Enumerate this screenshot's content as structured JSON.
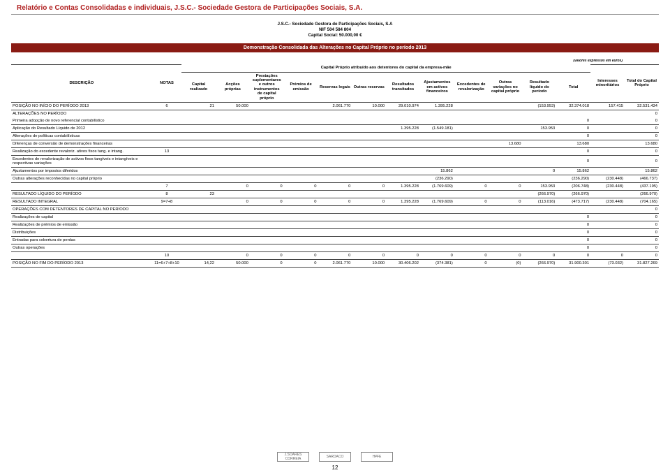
{
  "title": "Relatório e Contas Consolidadas e individuais, J.S.C.- Sociedade Gestora de Participações Sociais, S.A.",
  "company": {
    "line1": "J.S.C.- Sociedade Gestora de Participações Sociais, S.A",
    "line2": "NIF 504 584 804",
    "line3": "Capital Social: 50.000,00 €"
  },
  "banner": "Demonstração Consolidada das Alterações no Capital Próprio no período 2013",
  "subheader": "Capital Próprio atribuído aos detentores do capital da empresa-mãe",
  "euros_note": "(valores expressos em euros)",
  "columns": {
    "desc": "DESCRIÇÃO",
    "notas": "NOTAS",
    "c1": "Capital realizado",
    "c2": "Acções próprias",
    "c3": "Prestações suplementares e outros instrumentos de capital próprio",
    "c4": "Prémios de emissão",
    "c5": "Reservas legais",
    "c6": "Outras reservas",
    "c7": "Resultados transitados",
    "c8": "Ajustamentos em activos financeiros",
    "c9": "Excedentes de revalorização",
    "c10": "Outras variações no capital próprio",
    "c11": "Resultado líquido do período",
    "c12": "Total",
    "c13": "Interesses minoritários",
    "c14": "Total do Capital Próprio"
  },
  "rows": [
    {
      "label": "POSIÇÃO NO INÍCIO DO PERÍODO 2013",
      "notas": "6",
      "c1": "21",
      "c2": "50.000",
      "c3": "",
      "c4": "",
      "c5": "2.061.770",
      "c6": "10.000",
      "c7": "29.010.974",
      "c8": "1.395.228",
      "c9": "",
      "c10": "",
      "c11": "(153.953)",
      "c12": "32.374.018",
      "c13": "157.415",
      "c14": "32.531.434",
      "border": true
    },
    {
      "label": "ALTERAÇÕES NO PERÍODO",
      "c14": "0",
      "border": false
    },
    {
      "label": "Primeira adopção de novo referencial contabilístico",
      "c12": "0",
      "c14": "0",
      "border": true
    },
    {
      "label": "Aplicação do Resultado Líquido de 2012",
      "c7": "1.395.228",
      "c8": "(1.549.181)",
      "c11": "153.953",
      "c12": "0",
      "c14": "0",
      "border": true
    },
    {
      "label": "Alterações de políticas contabilísticas",
      "c12": "0",
      "c14": "0",
      "border": true
    },
    {
      "label": "Diferenças de conversão de demonstrações financeiras",
      "c10": "13.680",
      "c12": "13.680",
      "c14": "13.680",
      "border": true
    },
    {
      "label": "Realização do excedente revaloriz. ativos fixos tang. e intang.",
      "notas": "13",
      "c12": "0",
      "c14": "0",
      "border": true
    },
    {
      "label": "Excedentes de revalorização de activos fixos tangíveis e intangíveis e respectivas variações",
      "c12": "0",
      "c14": "0",
      "border": true
    },
    {
      "label": "Ajustamentos por impostos diferidos",
      "c8": "15.862",
      "c11": "0",
      "c12": "15.862",
      "c14": "15.862",
      "border": true
    },
    {
      "label": "Outras alterações reconhecidas no capital próprio",
      "c8": "(236.290)",
      "c12": "(236.290)",
      "c13": "(230.448)",
      "c14": "(466.737)",
      "border": true
    },
    {
      "label": "",
      "notas": "7",
      "c1": "",
      "c2": "0",
      "c3": "0",
      "c4": "0",
      "c5": "0",
      "c6": "0",
      "c7": "1.395.228",
      "c8": "(1.769.609)",
      "c9": "0",
      "c10": "0",
      "c11": "13.680",
      "c11b": "153.953",
      "c12": "(206.748)",
      "c13": "(230.448)",
      "c14": "(437.195)",
      "border": true,
      "summary": true
    },
    {
      "label": "RESULTADO LÍQUIDO DO PERÍODO",
      "notas": "8",
      "c1": "23",
      "c11": "(266.970)",
      "c12": "(266.970)",
      "c14": "(266.970)",
      "border": true
    },
    {
      "label": "RESULTADO INTEGRAL",
      "notas": "9=7+8",
      "c2": "0",
      "c3": "0",
      "c4": "0",
      "c5": "0",
      "c6": "0",
      "c7": "1.395.228",
      "c8": "(1.769.609)",
      "c9": "0",
      "c10": "0",
      "c10b": "13.680",
      "c11": "(113.016)",
      "c12": "(473.717)",
      "c13": "(230.448)",
      "c14": "(704.165)",
      "border": true
    },
    {
      "label": "OPERAÇÕES COM DETENTORES DE CAPITAL NO PERÍODO",
      "c14": "0",
      "border": true
    },
    {
      "label": "Realizações de capital",
      "c12": "0",
      "c14": "0",
      "border": true
    },
    {
      "label": "Realizações de prémios de emissão",
      "c12": "0",
      "c14": "0",
      "border": true
    },
    {
      "label": "Distribuições",
      "c12": "0",
      "c14": "0",
      "border": true
    },
    {
      "label": "Entradas para cobertura de perdas",
      "c12": "0",
      "c14": "0",
      "border": true
    },
    {
      "label": "Outras operações",
      "c12": "0",
      "c14": "0",
      "border": true
    },
    {
      "label": "",
      "notas": "10",
      "c1": "",
      "c2": "0",
      "c3": "0",
      "c4": "0",
      "c5": "0",
      "c6": "0",
      "c7": "0",
      "c8": "0",
      "c9": "0",
      "c10": "0",
      "c11": "0",
      "c12": "0",
      "c13": "0",
      "c14": "0",
      "border": true,
      "summary": true
    },
    {
      "label": "POSIÇÃO NO FIM DO PERÍODO 2013",
      "notas": "11=6+7+8+10",
      "c1": "14,22",
      "c2": "50.000",
      "c3": "0",
      "c4": "0",
      "c5": "2.061.770",
      "c6": "10.000",
      "c7": "30.406.202",
      "c8": "(374.381)",
      "c9": "0",
      "c10": "(0)",
      "c10b": "13.680",
      "c11": "(266.970)",
      "c12": "31.900.301",
      "c13": "(73.032)",
      "c14": "31.827.269",
      "border": true
    }
  ],
  "page_number": "12",
  "logos": [
    "J.SOARES CORREIA",
    "SARDACO",
    "H¥FE"
  ],
  "colors": {
    "title": "#b02020",
    "banner_bg": "#8a1b14",
    "banner_fg": "#ffffff",
    "border": "#444444"
  }
}
